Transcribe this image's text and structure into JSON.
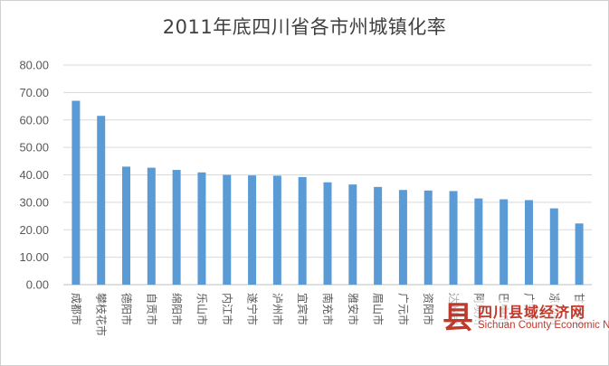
{
  "chart_data": {
    "type": "bar",
    "title": "2011年底四川省各市州城镇化率",
    "xlabel": "",
    "ylabel": "",
    "ylim": [
      0,
      80
    ],
    "yticks": [
      "0.00",
      "10.00",
      "20.00",
      "30.00",
      "40.00",
      "50.00",
      "60.00",
      "70.00",
      "80.00"
    ],
    "grid": true,
    "legend": "none",
    "bar_color": "#5b9bd5",
    "categories": [
      "成都市",
      "攀枝花市",
      "德阳市",
      "自贡市",
      "绵阳市",
      "乐山市",
      "内江市",
      "遂宁市",
      "泸州市",
      "宜宾市",
      "南充市",
      "雅安市",
      "眉山市",
      "广元市",
      "资阳市",
      "达州市",
      "阿坝州",
      "巴中市",
      "广安市",
      "凉山州",
      "甘孜州"
    ],
    "values": [
      67.0,
      61.5,
      43.0,
      42.6,
      41.8,
      40.9,
      40.0,
      39.8,
      39.7,
      39.2,
      37.3,
      36.5,
      35.6,
      34.5,
      34.3,
      34.1,
      31.4,
      31.1,
      30.8,
      27.8,
      22.3
    ]
  },
  "watermark": {
    "logo_char": "县",
    "cn_text": "四川县域经济网",
    "en_text": "Sichuan County Economic Net"
  }
}
